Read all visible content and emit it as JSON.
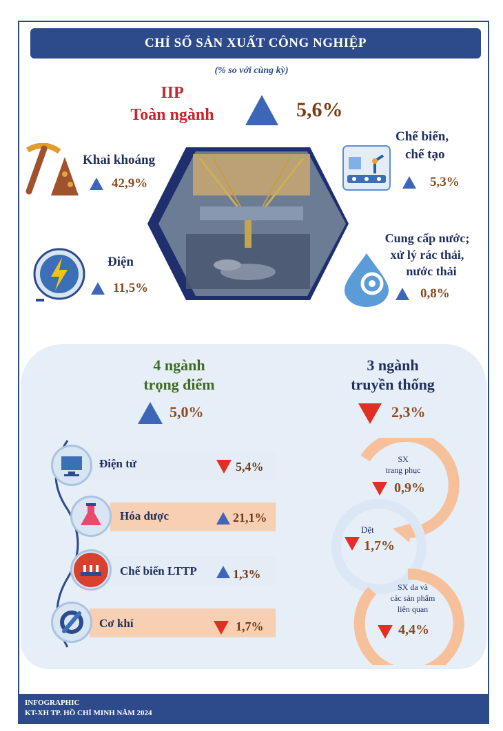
{
  "title": "CHỈ SỐ SẢN XUẤT CÔNG NGHIỆP",
  "subtitle": "(% so với cùng kỳ)",
  "iip": {
    "label_line1": "IIP",
    "label_line2": "Toàn ngành",
    "value": "5,6%"
  },
  "sectors": {
    "mining": {
      "label": "Khai khoáng",
      "value": "42,9%",
      "icon": "pickaxe-icon"
    },
    "manufacturing": {
      "label_line1": "Chế biến,",
      "label_line2": "chế tạo",
      "value": "5,3%",
      "icon": "robot-arm-icon"
    },
    "electricity": {
      "label": "Điện",
      "value": "11,5%",
      "icon": "lightning-plug-icon"
    },
    "water": {
      "label_line1": "Cung cấp nước;",
      "label_line2": "xử lý rác thải,",
      "label_line3": "nước thải",
      "value": "0,8%",
      "icon": "water-gear-icon"
    }
  },
  "key_industries": {
    "title_line1": "4 ngành",
    "title_line2": "trọng điểm",
    "value": "5,0%",
    "trend": "up",
    "items": [
      {
        "label": "Điện tử",
        "value": "5,4%",
        "trend": "down",
        "icon": "computer-icon"
      },
      {
        "label": "Hóa dược",
        "value": "21,1%",
        "trend": "up",
        "icon": "flask-icon"
      },
      {
        "label": "Chế biến LTTP",
        "value": "1,3%",
        "trend": "up",
        "icon": "food-conveyor-icon"
      },
      {
        "label": "Cơ khí",
        "value": "1,7%",
        "trend": "down",
        "icon": "wrench-gear-icon"
      }
    ]
  },
  "traditional_industries": {
    "title_line1": "3 ngành",
    "title_line2": "truyền thống",
    "value": "2,3%",
    "trend": "down",
    "items": [
      {
        "label_line1": "SX",
        "label_line2": "trang phục",
        "value": "0,9%",
        "trend": "down"
      },
      {
        "label_line1": "Dệt",
        "value": "1,7%",
        "trend": "down"
      },
      {
        "label_line1": "SX da và",
        "label_line2": "các sản phẩm",
        "label_line3": "liên quan",
        "value": "4,4%",
        "trend": "down"
      }
    ]
  },
  "footer": {
    "line1": "INFOGRAPHIC",
    "line2": "KT-XH TP. HỒ CHÍ MINH NĂM 2024"
  },
  "colors": {
    "navy": "#2d4a8a",
    "red": "#c8242b",
    "up": "#3d66b8",
    "down": "#e03026",
    "peach": "#f7cfb2"
  }
}
